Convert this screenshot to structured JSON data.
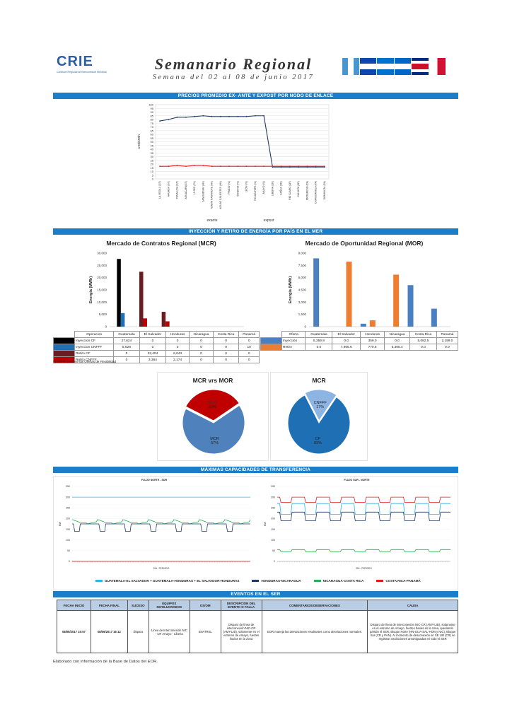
{
  "header": {
    "logo_text": "CRIE",
    "logo_sub": "Comisión Regional de Interconexión Eléctrica",
    "title": "Semanario Regional",
    "subtitle": "Semana del 02 al 08 de junio 2017"
  },
  "sections": {
    "precios": "PRECIOS PROMEDIO EX- ANTE Y EXPOST POR NODO DE ENLACE",
    "inyeccion": "INYECCIÓN Y RETIRO DE ENERGÍA POR PAÍS EN EL MER",
    "capacidades": "MÁXIMAS CAPACIDADES DE TRANSFERENCIA",
    "eventos": "EVENTOS EN EL SER"
  },
  "price_chart": {
    "ylabel": "US$/MWh",
    "yticks": [
      0,
      5,
      10,
      15,
      20,
      25,
      30,
      35,
      40,
      45,
      50,
      55,
      60,
      65,
      70,
      75,
      80,
      85,
      90,
      95,
      100
    ],
    "nodes": [
      "LA VEGA II (GT)",
      "AHUACH (GT)",
      "PANALUYA (GT)",
      "AGUACAPA(GT)",
      "15 SEP (SV)",
      "SAN BUENAV (HN)",
      "NUEVA NAGAROTE (HN)",
      "AGUAS CALIENTES (HN)",
      "PRADO (NI)",
      "SANDINO (NI)",
      "LEÓN (NI)",
      "TICUANTEPE (NI)",
      "AMAYO (NI)",
      "LIBERIA (CR)",
      "CAÑAS (CR)",
      "RÍO CLARO (CR)",
      "CAHUITA (CR)",
      "PROGRESO (PA)",
      "CHANGUINOLA (PA)",
      "DOMINICAL (PA)"
    ],
    "exante": [
      78,
      80,
      83,
      83,
      84,
      85,
      84,
      84,
      84,
      84,
      84,
      85,
      85,
      16,
      16,
      16,
      16,
      16,
      16,
      16
    ],
    "expost": [
      17,
      17,
      18,
      17,
      18,
      18,
      17,
      17,
      17,
      17,
      17,
      17,
      17,
      17,
      17,
      17,
      17,
      17,
      17,
      17
    ],
    "legend": [
      "exante",
      "expost"
    ]
  },
  "mcr": {
    "title": "Mercado de Contratos Regional (MCR)",
    "ylabel": "Energía (MWh)",
    "yticks": [
      "0",
      "5,000",
      "10,000",
      "15,000",
      "20,000",
      "25,000",
      "30,000"
    ],
    "columns": [
      "Operacion",
      "Guatemala",
      "El Salvador",
      "Honduras",
      "Nicaragua",
      "Costa Rica",
      "Panamá"
    ],
    "rows": [
      {
        "name": "Inyeccion CF",
        "color": "#000000",
        "values": [
          "27,624",
          "0",
          "0",
          "0",
          "0",
          "0"
        ]
      },
      {
        "name": "Inyeccion CNFFF",
        "color": "#1f6fb5",
        "values": [
          "5,528",
          "0",
          "0",
          "0",
          "0",
          "10"
        ]
      },
      {
        "name": "Retiro CF",
        "color": "#6b1c22",
        "values": [
          "0",
          "22,404",
          "6,043",
          "0",
          "0",
          "0"
        ]
      },
      {
        "name": "Retiro CNFFF",
        "color": "#c00000",
        "values": [
          "0",
          "3,364",
          "2,174",
          "0",
          "0",
          "0"
        ]
      }
    ],
    "note": "* CNFFF contiene las Ofertas de Flexibilidad"
  },
  "mor": {
    "title": "Mercado de Oportunidad Regional (MOR)",
    "ylabel": "Energía (MWh)",
    "yticks": [
      "0",
      "1,500",
      "3,000",
      "4,500",
      "6,000",
      "7,500",
      "9,000"
    ],
    "columns": [
      "Oferta",
      "Guatemala",
      "El Salvador",
      "Honduras",
      "Nicaragua",
      "Costa Rica",
      "Panamá"
    ],
    "rows": [
      {
        "name": "Inyección",
        "color": "#4a7fc1",
        "values": [
          "8,359.9",
          "0.0",
          "359.0",
          "0.0",
          "5,082.5",
          "2,199.0"
        ]
      },
      {
        "name": "Retiro",
        "color": "#ed7d31",
        "values": [
          "0.0",
          "7,955.6",
          "770.6",
          "6,365.4",
          "0.0",
          "0.0"
        ]
      }
    ]
  },
  "chart_data": [
    {
      "type": "line",
      "title": "",
      "xlabel": "",
      "ylabel": "US$/MWh",
      "ylim": [
        0,
        100
      ],
      "categories": [
        "LA VEGA II (GT)",
        "AHUACH (GT)",
        "PANALUYA (GT)",
        "AGUACAPA(GT)",
        "15 SEP (SV)",
        "SAN BUENAV (HN)",
        "NUEVA NAGAROTE (HN)",
        "AGUAS CALIENTES (HN)",
        "PRADO (NI)",
        "SANDINO (NI)",
        "LEÓN (NI)",
        "TICUANTEPE (NI)",
        "AMAYO (NI)",
        "LIBERIA (CR)",
        "CAÑAS (CR)",
        "RÍO CLARO (CR)",
        "CAHUITA (CR)",
        "PROGRESO (PA)",
        "CHANGUINOLA (PA)",
        "DOMINICAL (PA)"
      ],
      "series": [
        {
          "name": "exante",
          "values": [
            78,
            80,
            83,
            83,
            84,
            85,
            84,
            84,
            84,
            84,
            84,
            85,
            85,
            16,
            16,
            16,
            16,
            16,
            16,
            16
          ]
        },
        {
          "name": "expost",
          "values": [
            17,
            17,
            18,
            17,
            18,
            18,
            17,
            17,
            17,
            17,
            17,
            17,
            17,
            17,
            17,
            17,
            17,
            17,
            17,
            17
          ]
        }
      ]
    },
    {
      "type": "bar",
      "title": "Mercado de Contratos Regional (MCR)",
      "ylabel": "Energía (MWh)",
      "ylim": [
        0,
        30000
      ],
      "categories": [
        "Guatemala",
        "El Salvador",
        "Honduras",
        "Nicaragua",
        "Costa Rica",
        "Panamá"
      ],
      "series": [
        {
          "name": "Inyeccion CF",
          "values": [
            27624,
            0,
            0,
            0,
            0,
            0
          ]
        },
        {
          "name": "Inyeccion CNFFF",
          "values": [
            5528,
            0,
            0,
            0,
            0,
            10
          ]
        },
        {
          "name": "Retiro CF",
          "values": [
            0,
            22404,
            6043,
            0,
            0,
            0
          ]
        },
        {
          "name": "Retiro CNFFF",
          "values": [
            0,
            3364,
            2174,
            0,
            0,
            0
          ]
        }
      ]
    },
    {
      "type": "bar",
      "title": "Mercado de Oportunidad Regional (MOR)",
      "ylabel": "Energía (MWh)",
      "ylim": [
        0,
        9000
      ],
      "categories": [
        "Guatemala",
        "El Salvador",
        "Honduras",
        "Nicaragua",
        "Costa Rica",
        "Panamá"
      ],
      "series": [
        {
          "name": "Inyección",
          "values": [
            8359.9,
            0,
            359.0,
            0,
            5082.5,
            2199.0
          ]
        },
        {
          "name": "Retiro",
          "values": [
            0,
            7955.6,
            770.6,
            6365.4,
            0,
            0
          ]
        }
      ]
    },
    {
      "type": "pie",
      "title": "MCR vrs MOR",
      "labels": [
        "MOR",
        "MCR"
      ],
      "values": [
        33,
        67
      ],
      "colors": [
        "#c00000",
        "#4f81bd"
      ],
      "display": [
        "MOR\n33%",
        "MCR\n67%"
      ]
    },
    {
      "type": "pie",
      "title": "MCR",
      "labels": [
        "CNFFF",
        "CF"
      ],
      "values": [
        17,
        83
      ],
      "colors": [
        "#8db4e2",
        "#1f6fb5"
      ],
      "display": [
        "CNFFF\n17%",
        "CF\n83%"
      ]
    }
  ],
  "pies": {
    "left": {
      "title": "MCR vrs MOR",
      "labels": [
        "MOR",
        "33%",
        "MCR",
        "67%"
      ]
    },
    "right": {
      "title": "MCR",
      "labels": [
        "CNFFF",
        "17%",
        "CF",
        "83%"
      ]
    }
  },
  "flujo": {
    "left_title": "FLUJO NORTE - SUR",
    "right_title": "FLUJO SUR - NORTE",
    "yticks": [
      "0",
      "50",
      "100",
      "150",
      "200",
      "250",
      "300",
      "350"
    ],
    "xlabel": "DÍA - PERIODO",
    "ylabel": "MW",
    "legend": [
      {
        "name": "GUATEMALA-EL SALVADOR + GUATEMALA-HONDURAS + EL SALVADOR-HONDURAS",
        "color": "#2bb5e8"
      },
      {
        "name": "HONDURAS-NICARAGUA",
        "color": "#1f3864"
      },
      {
        "name": "NICARAGUA-COSTA RICA",
        "color": "#22b14c"
      },
      {
        "name": "COSTA RICA-PANAMÁ",
        "color": "#e31a1c"
      }
    ]
  },
  "eventos": {
    "headers": [
      "FECHA INICIO",
      "FECHA FINAL",
      "SUCESO",
      "EQUIPOS INVOLUCRADOS",
      "OS/OM",
      "DESCRIPCION DEL EVENTO O FALLA",
      "COMENTARIOS/OBSERVACIONES",
      "CAUSA"
    ],
    "row": [
      "08/06/2017 15:57",
      "08/06/2017 16:12",
      "disparo",
      "Línea de Interconexión NIC - CR Amayo - Liberia",
      "ENATREL",
      "Disparo de línea de interconexión NIC-CR (AMY-LIB), solamente en el extremo de Amayo, fuertes lluvias en la zona",
      "EOR maneja las desviaciones resultantes como desviaciones normales.",
      "Disparo de línea de interconexión NIC-CR (AMY-LIB), solamente en el extremo de Amayo, fuertes lluvias en la zona, quedando partido el SER; Bloque Norte (HN-GUA-SAL-HON y NIC), Bloque Sur (CR y PAN). Al momento de desconexión en SE LIB (CR) se registran oscilaciones amortiguadas en todo el SER"
    ]
  },
  "footer": "Elaborado con información de la Base de Datos del EOR."
}
